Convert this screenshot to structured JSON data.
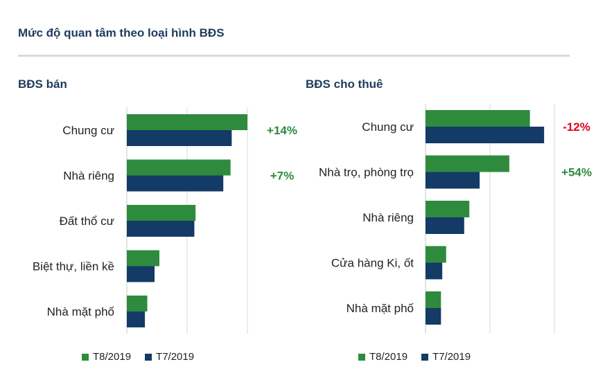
{
  "page": {
    "title": "Mức độ quan tâm theo loại hình BĐS"
  },
  "colors": {
    "t8": "#2e8b3e",
    "t7": "#143a66",
    "positive": "#2e8b3e",
    "negative": "#e0001b",
    "grid": "#d9d9d9"
  },
  "legend": {
    "t8": "T8/2019",
    "t7": "T7/2019"
  },
  "chart_data": [
    {
      "type": "bar",
      "orientation": "horizontal",
      "title": "BĐS bán",
      "categories": [
        "Chung cư",
        "Nhà riêng",
        "Đất thổ cư",
        "Biệt thự, liền kề",
        "Nhà mặt phố"
      ],
      "series": [
        {
          "name": "T8/2019",
          "values": [
            100,
            86,
            57,
            27,
            17
          ]
        },
        {
          "name": "T7/2019",
          "values": [
            87,
            80,
            56,
            23,
            15
          ]
        }
      ],
      "annotations": [
        "+14%",
        "+7%",
        "",
        "",
        ""
      ],
      "xlim": [
        0,
        100
      ],
      "grid": true,
      "legend_position": "bottom"
    },
    {
      "type": "bar",
      "orientation": "horizontal",
      "title": "BĐS cho thuê",
      "categories": [
        "Chung cư",
        "Nhà trọ, phòng trọ",
        "Nhà riêng",
        "Cửa hàng Ki, ốt",
        "Nhà mặt phố"
      ],
      "series": [
        {
          "name": "T8/2019",
          "values": [
            81,
            65,
            34,
            16,
            12
          ]
        },
        {
          "name": "T7/2019",
          "values": [
            92,
            42,
            30,
            13,
            12
          ]
        }
      ],
      "annotations": [
        "-12%",
        "+54%",
        "",
        "",
        ""
      ],
      "xlim": [
        0,
        100
      ],
      "grid": true,
      "legend_position": "bottom"
    }
  ]
}
